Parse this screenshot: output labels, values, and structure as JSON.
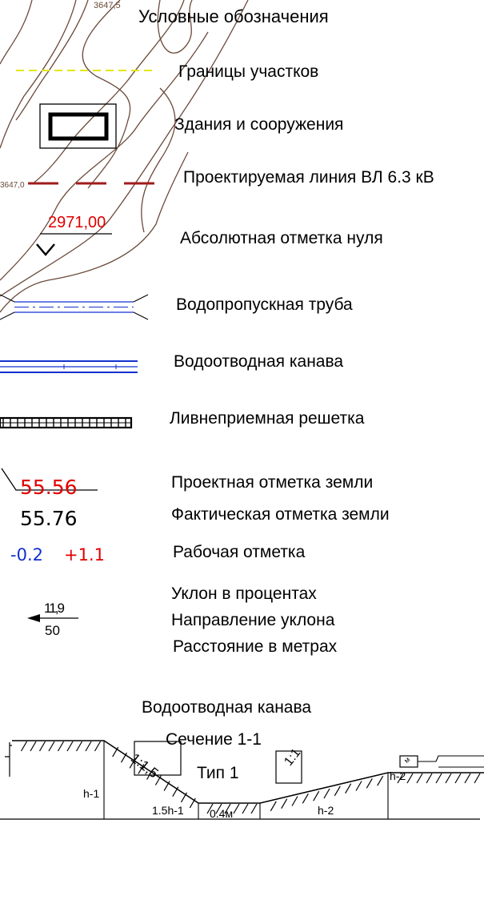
{
  "colors": {
    "boundary": "#e6e600",
    "power_line": "#a01c1c",
    "design": "#e00000",
    "blue": "#1230d0",
    "contour": "#6b4a3a",
    "ink": "#000000"
  },
  "map_fragment": {
    "contour_label_top": "3647,5",
    "contour_label_left": "3647,0"
  },
  "legend": {
    "title": "Условные обозначения",
    "items": {
      "boundaries": "Границы участков",
      "buildings": "Здания и сооружения",
      "power_line": "Проектируемая линия ВЛ 6.3 кВ",
      "zero_mark": "Абсолютная отметка нуля",
      "culvert": "Водопропускная труба",
      "ditch": "Водоотводная канава",
      "grate": "Ливнеприемная решетка",
      "design_mark": "Проектная отметка земли",
      "actual_mark": "Фактическая отметка земли",
      "work_mark": "Рабочая отметка",
      "slope_percent": "Уклон в процентах",
      "slope_direction": "Направление уклона",
      "distance_m": "Расстояние в метрах"
    },
    "zero_mark_value": "2971,00",
    "design_value": "55.56",
    "actual_value": "55.76",
    "work_values": {
      "cut": "-0.2",
      "fill": "+1.1"
    },
    "slope_value": "11,9",
    "distance_value": "50"
  },
  "section": {
    "title": "Водоотводная канава",
    "subtitle": "Сечение 1-1",
    "type_label": "Тип 1",
    "slope_left": "1:1,5",
    "slope_right": "1:1",
    "dim_h1": "h-1",
    "dim_h2_right": "h-2",
    "dim_bottom_left": "1.5h-1",
    "dim_bottom_mid": "0.4м",
    "dim_bottom_right": "h-2",
    "corner_tag": "м"
  }
}
